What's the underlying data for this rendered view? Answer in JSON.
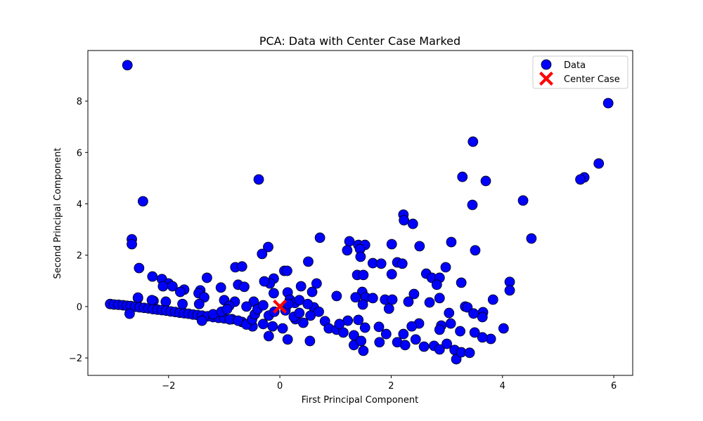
{
  "chart_data": {
    "type": "scatter",
    "title": "PCA: Data with Center Case Marked",
    "xlabel": "First Principal Component",
    "ylabel": "Second Principal Component",
    "xlim": [
      -3.45,
      6.34
    ],
    "ylim": [
      -2.68,
      9.97
    ],
    "xticks": [
      {
        "value": -2,
        "label": "−2"
      },
      0,
      2,
      4,
      6
    ],
    "yticks": [
      {
        "value": -2,
        "label": "−2"
      },
      0,
      2,
      4,
      6,
      8
    ],
    "legend": "upper right",
    "series": [
      {
        "name": "Data",
        "color": "#0000ff",
        "edgecolor": "#000000",
        "marker": "o",
        "x": [
          -2.74,
          5.9,
          3.47,
          5.73,
          3.28,
          5.47,
          5.4,
          3.7,
          -0.38,
          -2.46,
          3.46,
          4.37,
          2.22,
          2.23,
          2.39,
          4.52,
          -2.66,
          -2.66,
          0.72,
          1.25,
          3.08,
          -0.21,
          -0.32,
          2.51,
          1.21,
          3.51,
          1.41,
          1.53,
          1.44,
          1.45,
          2.01,
          0.51,
          1.67,
          1.82,
          2.11,
          2.2,
          -2.53,
          -0.8,
          -0.68,
          2.98,
          0.08,
          0.13,
          1.39,
          1.5,
          2.01,
          -2.29,
          -1.31,
          -2.12,
          -0.11,
          2.63,
          2.73,
          2.87,
          -0.18,
          -0.28,
          -2.0,
          -1.93,
          -2.1,
          4.13,
          4.13,
          0.66,
          0.38,
          3.26,
          2.82,
          -0.75,
          -0.64,
          -1.06,
          -1.72,
          -1.79,
          -1.43,
          -1.46,
          0.14,
          -0.11,
          0.58,
          1.48,
          2.41,
          1.54,
          1.67,
          1.36,
          1.02,
          1.89,
          2.02,
          2.31,
          -1.0,
          -1.36,
          -0.81,
          -0.91,
          -0.47,
          3.83,
          2.69,
          2.87,
          -2.27,
          -2.05,
          -2.55,
          3.33,
          3.37,
          1.49,
          1.96,
          3.65,
          3.48,
          3.64,
          3.04,
          0.61,
          0.18,
          0.27,
          0.35,
          0.81,
          0.88,
          0.54,
          0.14,
          -0.2,
          1.02,
          1.14,
          1.33,
          1.33,
          1.5,
          1.46,
          1.79,
          1.91,
          2.11,
          2.25,
          2.44,
          2.59,
          2.77,
          2.87,
          3.0,
          3.14,
          3.17,
          3.26,
          3.41,
          3.24,
          3.07,
          2.9,
          2.87,
          4.02,
          3.79,
          3.64,
          3.5,
          2.22,
          2.5,
          2.37,
          1.78,
          1.53,
          1.41,
          1.22,
          1.07,
          0.42,
          0.28,
          0.05,
          -0.13,
          -0.3,
          -0.49,
          -0.68,
          -0.86,
          -3.05,
          -2.98,
          -2.9,
          -2.82,
          -2.75,
          -2.68,
          -2.6,
          -2.52,
          -2.44,
          -2.36,
          -2.28,
          -2.2,
          -2.12,
          -2.04,
          -1.96,
          -1.88,
          -1.8,
          -1.72,
          -1.64,
          -1.56,
          -1.48,
          -1.4,
          -1.3,
          -1.2,
          -1.1,
          -1.0,
          -0.9,
          -2.7,
          -2.55,
          -2.3,
          -1.45,
          -1.75,
          -1.4,
          -1.2,
          -1.05,
          -0.95,
          -0.75,
          -0.6,
          -0.5,
          -0.45,
          -0.4,
          -0.2,
          -0.1,
          0.1,
          0.25,
          0.35,
          0.55,
          0.7,
          0.5,
          -0.6,
          -0.3,
          0.15
        ],
        "y": [
          9.4,
          7.92,
          6.42,
          5.57,
          5.05,
          5.03,
          4.95,
          4.89,
          4.95,
          4.1,
          3.96,
          4.13,
          3.58,
          3.36,
          3.22,
          2.65,
          2.62,
          2.43,
          2.68,
          2.54,
          2.51,
          2.32,
          2.05,
          2.35,
          2.19,
          2.19,
          2.4,
          2.4,
          2.24,
          1.94,
          2.43,
          1.75,
          1.69,
          1.67,
          1.72,
          1.67,
          1.5,
          1.53,
          1.56,
          1.53,
          1.39,
          1.39,
          1.23,
          1.23,
          1.26,
          1.17,
          1.12,
          1.07,
          1.09,
          1.28,
          1.12,
          1.12,
          0.9,
          0.98,
          0.9,
          0.79,
          0.79,
          0.96,
          0.63,
          0.9,
          0.79,
          0.93,
          0.85,
          0.85,
          0.77,
          0.74,
          0.66,
          0.57,
          0.63,
          0.52,
          0.55,
          0.52,
          0.57,
          0.57,
          0.49,
          0.36,
          0.33,
          0.36,
          0.41,
          0.27,
          0.27,
          0.19,
          0.25,
          0.36,
          0.19,
          0.03,
          0.19,
          0.27,
          0.16,
          0.33,
          0.22,
          0.19,
          0.33,
          0.0,
          -0.03,
          0.08,
          -0.08,
          -0.22,
          -0.27,
          -0.41,
          -0.25,
          -0.03,
          0.27,
          0.14,
          0.25,
          -0.57,
          -0.85,
          -1.34,
          -1.28,
          -1.15,
          -0.9,
          -1.01,
          -1.12,
          -1.5,
          -1.72,
          -1.34,
          -1.39,
          -1.07,
          -1.39,
          -1.5,
          -1.28,
          -1.56,
          -1.53,
          -1.67,
          -1.45,
          -1.69,
          -2.05,
          -1.78,
          -1.8,
          -0.96,
          -0.66,
          -0.74,
          -0.9,
          -0.85,
          -1.26,
          -1.2,
          -1.01,
          -1.07,
          -0.66,
          -0.77,
          -0.79,
          -0.82,
          -0.52,
          -0.55,
          -0.68,
          -0.63,
          -0.49,
          -0.85,
          -0.77,
          -0.68,
          -0.77,
          -0.6,
          -0.49,
          0.1,
          0.08,
          0.07,
          0.05,
          0.03,
          0.02,
          -0.01,
          -0.03,
          -0.05,
          -0.07,
          -0.1,
          -0.12,
          -0.14,
          -0.16,
          -0.19,
          -0.21,
          -0.24,
          -0.26,
          -0.28,
          -0.31,
          -0.33,
          -0.35,
          -0.38,
          -0.41,
          -0.44,
          -0.46,
          -0.5,
          -0.28,
          0.35,
          0.25,
          0.1,
          0.1,
          -0.55,
          -0.3,
          -0.2,
          -0.1,
          -0.55,
          -0.7,
          -0.5,
          -0.3,
          -0.1,
          -0.35,
          -0.2,
          -0.15,
          -0.4,
          -0.25,
          -0.35,
          -0.2,
          0.1,
          0.0,
          0.05,
          0.1
        ]
      },
      {
        "name": "Center Case",
        "color": "#ff0000",
        "marker": "X",
        "x": [
          0
        ],
        "y": [
          0
        ]
      }
    ]
  }
}
